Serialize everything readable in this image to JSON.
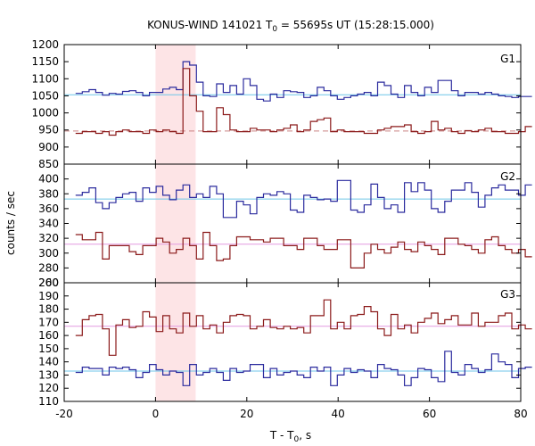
{
  "title_prefix": "KONUS-WIND 141021 T",
  "title_sub": "0",
  "title_suffix": " = 55695s UT (15:28:15.000)",
  "xlabel_prefix": "T - T",
  "xlabel_sub": "0",
  "xlabel_suffix": ", s",
  "ylabel": "counts / sec",
  "chart_data": [
    {
      "type": "line",
      "panel": "G1",
      "xlim": [
        -20,
        80
      ],
      "ylim": [
        850,
        1200
      ],
      "yticks": [
        850,
        900,
        950,
        1000,
        1050,
        1100,
        1150,
        1200
      ],
      "highlight_x": [
        0,
        8.8
      ],
      "series": [
        {
          "color": "#2b2b9e",
          "background": 1053,
          "background_color": "#6fc6e8",
          "values": [
            1057,
            1062,
            1068,
            1060,
            1052,
            1057,
            1055,
            1063,
            1065,
            1060,
            1050,
            1060,
            1060,
            1070,
            1075,
            1068,
            1150,
            1140,
            1090,
            1050,
            1048,
            1085,
            1060,
            1080,
            1055,
            1100,
            1080,
            1040,
            1035,
            1055,
            1045,
            1065,
            1062,
            1060,
            1045,
            1050,
            1075,
            1065,
            1050,
            1040,
            1045,
            1050,
            1055,
            1060,
            1050,
            1090,
            1080,
            1055,
            1045,
            1080,
            1060,
            1050,
            1075,
            1060,
            1095,
            1095,
            1065,
            1050,
            1060,
            1060,
            1055,
            1060,
            1055,
            1050,
            1048,
            1045,
            1048,
            1048
          ]
        },
        {
          "color": "#8b1a1a",
          "background": 947,
          "background_color": "#c98080",
          "values": [
            940,
            945,
            945,
            940,
            945,
            935,
            945,
            950,
            945,
            945,
            940,
            950,
            945,
            950,
            945,
            940,
            1130,
            1050,
            1005,
            945,
            945,
            1015,
            995,
            950,
            945,
            945,
            955,
            950,
            950,
            945,
            950,
            955,
            965,
            945,
            950,
            975,
            980,
            985,
            945,
            950,
            945,
            945,
            945,
            940,
            940,
            950,
            955,
            960,
            960,
            965,
            945,
            940,
            945,
            975,
            950,
            955,
            945,
            940,
            948,
            945,
            950,
            955,
            945,
            945,
            940,
            940,
            945,
            960
          ]
        }
      ]
    },
    {
      "type": "line",
      "panel": "G2",
      "xlim": [
        -20,
        80
      ],
      "ylim": [
        260,
        420
      ],
      "yticks": [
        260,
        280,
        300,
        320,
        340,
        360,
        380,
        400
      ],
      "highlight_x": [
        0,
        8.8
      ],
      "series": [
        {
          "color": "#2b2b9e",
          "background": 373,
          "background_color": "#6fc6e8",
          "values": [
            378,
            382,
            388,
            368,
            360,
            368,
            375,
            380,
            382,
            370,
            388,
            382,
            390,
            378,
            372,
            385,
            392,
            375,
            380,
            375,
            390,
            380,
            348,
            348,
            370,
            365,
            353,
            375,
            380,
            378,
            383,
            380,
            358,
            355,
            378,
            375,
            372,
            373,
            370,
            398,
            398,
            358,
            355,
            365,
            393,
            375,
            360,
            365,
            355,
            395,
            383,
            395,
            385,
            360,
            355,
            370,
            385,
            385,
            395,
            382,
            362,
            378,
            388,
            392,
            385,
            385,
            378,
            392
          ]
        },
        {
          "color": "#8b1a1a",
          "background": 312,
          "background_color": "#e49ae0",
          "values": [
            325,
            318,
            318,
            328,
            292,
            310,
            310,
            310,
            302,
            298,
            310,
            310,
            320,
            315,
            300,
            305,
            320,
            310,
            292,
            328,
            310,
            290,
            292,
            310,
            322,
            322,
            318,
            318,
            315,
            320,
            320,
            310,
            310,
            305,
            320,
            320,
            310,
            305,
            305,
            318,
            318,
            280,
            280,
            300,
            312,
            305,
            300,
            308,
            315,
            305,
            302,
            315,
            310,
            305,
            298,
            320,
            320,
            312,
            310,
            305,
            300,
            318,
            322,
            310,
            305,
            300,
            305,
            295
          ]
        }
      ]
    },
    {
      "type": "line",
      "panel": "G3",
      "xlim": [
        -20,
        80
      ],
      "ylim": [
        110,
        200
      ],
      "yticks": [
        110,
        120,
        130,
        140,
        150,
        160,
        170,
        180,
        190,
        200
      ],
      "highlight_x": [
        0,
        8.8
      ],
      "series": [
        {
          "color": "#8b1a1a",
          "background": 167,
          "background_color": "#e49ae0",
          "values": [
            160,
            172,
            175,
            176,
            165,
            145,
            168,
            172,
            166,
            167,
            178,
            174,
            163,
            175,
            165,
            162,
            177,
            167,
            175,
            165,
            168,
            162,
            170,
            175,
            176,
            175,
            165,
            167,
            172,
            166,
            165,
            167,
            165,
            166,
            162,
            175,
            175,
            187,
            165,
            170,
            165,
            175,
            176,
            182,
            178,
            165,
            160,
            176,
            165,
            168,
            162,
            170,
            173,
            177,
            169,
            172,
            175,
            168,
            168,
            177,
            167,
            170,
            170,
            175,
            177,
            165,
            168,
            165
          ]
        },
        {
          "color": "#2b2b9e",
          "background": 133,
          "background_color": "#6fc6e8",
          "values": [
            132,
            136,
            135,
            135,
            130,
            136,
            135,
            136,
            134,
            128,
            132,
            138,
            134,
            130,
            133,
            132,
            122,
            138,
            130,
            132,
            135,
            132,
            126,
            135,
            132,
            133,
            138,
            138,
            128,
            135,
            130,
            132,
            133,
            130,
            128,
            136,
            133,
            136,
            122,
            130,
            135,
            132,
            134,
            133,
            128,
            138,
            135,
            134,
            130,
            122,
            128,
            135,
            134,
            128,
            125,
            148,
            132,
            130,
            138,
            135,
            132,
            134,
            146,
            140,
            138,
            128,
            135,
            136
          ]
        }
      ]
    }
  ],
  "xticks": [
    -20,
    0,
    20,
    40,
    60,
    80
  ],
  "bin_width": 1.47
}
